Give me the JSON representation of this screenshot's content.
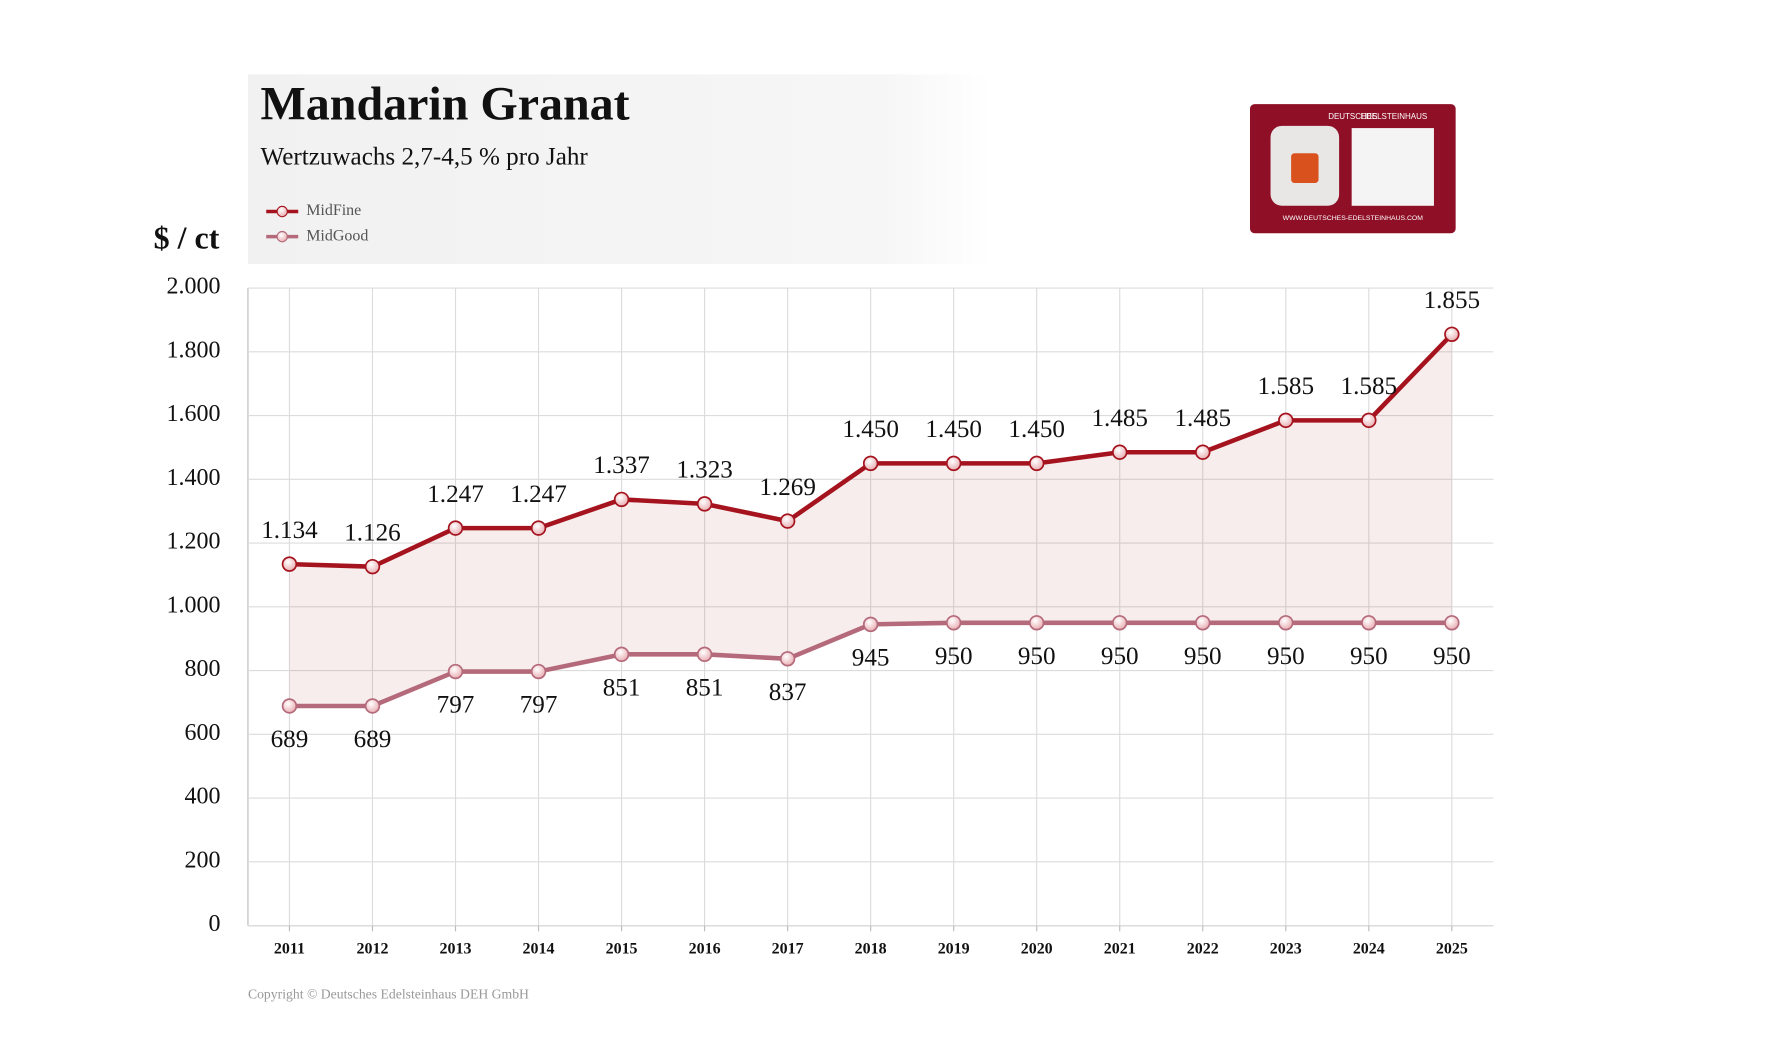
{
  "chart_data": {
    "type": "line",
    "title": "Mandarin Granat",
    "subtitle": "Wertzuwachs 2,7-4,5 % pro Jahr",
    "y_label": "$ / ct",
    "footer": "Copyright © Deutsches Edelsteinhaus DEH GmbH",
    "categories": [
      "2011",
      "2012",
      "2013",
      "2014",
      "2015",
      "2016",
      "2017",
      "2018",
      "2019",
      "2020",
      "2021",
      "2022",
      "2023",
      "2024",
      "2025"
    ],
    "series": [
      {
        "name": "MidFine",
        "color": "#a5141e",
        "label_side": "above",
        "values": [
          1134,
          1126,
          1247,
          1247,
          1337,
          1323,
          1269,
          1450,
          1450,
          1450,
          1485,
          1485,
          1585,
          1585,
          1855
        ],
        "value_labels": [
          "1.134",
          "1.126",
          "1.247",
          "1.247",
          "1.337",
          "1.323",
          "1.269",
          "1.450",
          "1.450",
          "1.450",
          "1.485",
          "1.485",
          "1.585",
          "1.585",
          "1.855"
        ]
      },
      {
        "name": "MidGood",
        "color": "#b46a7b",
        "label_side": "below",
        "values": [
          689,
          689,
          797,
          797,
          851,
          851,
          837,
          945,
          950,
          950,
          950,
          950,
          950,
          950,
          950
        ]
      }
    ],
    "fill_between": true,
    "ylim": [
      0,
      2000
    ],
    "yticks": [
      0,
      200,
      400,
      600,
      800,
      {
        "value": 1000,
        "label": "1.000"
      },
      {
        "value": 1200,
        "label": "1.200"
      },
      {
        "value": 1400,
        "label": "1.400"
      },
      {
        "value": 1600,
        "label": "1.600"
      },
      {
        "value": 1800,
        "label": "1.800"
      },
      {
        "value": 2000,
        "label": "2.000"
      }
    ],
    "grid": true,
    "legend": "upper left"
  },
  "certificate_card": {
    "brand_bold": "DEUTSCHES",
    "brand": "EDELSTEINHAUS",
    "url": "WWW.DEUTSCHES-EDELSTEINHAUS.COM"
  }
}
